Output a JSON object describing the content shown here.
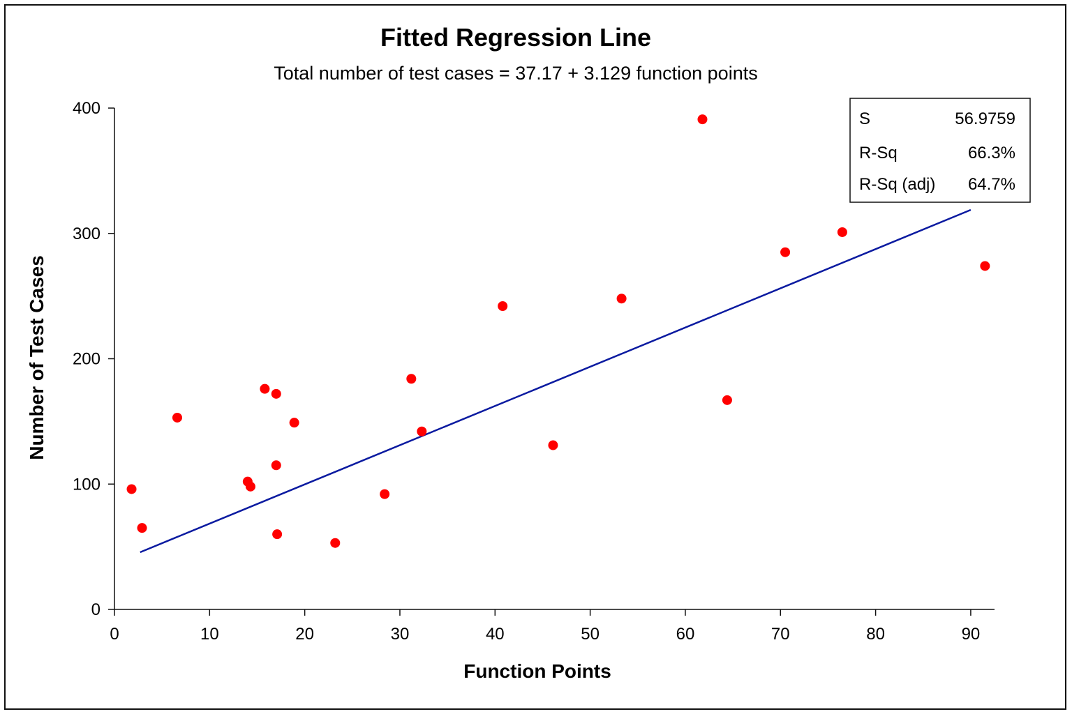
{
  "chart_data": {
    "type": "scatter",
    "title": "Fitted Regression Line",
    "subtitle": "Total number of test cases = 37.17 + 3.129 function points",
    "xlabel": "Function Points",
    "ylabel": "Number of Test Cases",
    "xlim": [
      0,
      92.5
    ],
    "ylim": [
      0,
      400
    ],
    "xticks": [
      0,
      10,
      20,
      30,
      40,
      50,
      60,
      70,
      80,
      90
    ],
    "yticks": [
      0,
      100,
      200,
      300,
      400
    ],
    "grid": false,
    "points": [
      {
        "x": 1.8,
        "y": 96
      },
      {
        "x": 2.9,
        "y": 65
      },
      {
        "x": 6.6,
        "y": 153
      },
      {
        "x": 14.0,
        "y": 102
      },
      {
        "x": 14.3,
        "y": 98
      },
      {
        "x": 15.8,
        "y": 176
      },
      {
        "x": 17.0,
        "y": 172
      },
      {
        "x": 17.0,
        "y": 115
      },
      {
        "x": 17.1,
        "y": 60
      },
      {
        "x": 18.9,
        "y": 149
      },
      {
        "x": 23.2,
        "y": 53
      },
      {
        "x": 28.4,
        "y": 92
      },
      {
        "x": 31.2,
        "y": 184
      },
      {
        "x": 32.3,
        "y": 142
      },
      {
        "x": 40.8,
        "y": 242
      },
      {
        "x": 46.1,
        "y": 131
      },
      {
        "x": 53.3,
        "y": 248
      },
      {
        "x": 61.8,
        "y": 391
      },
      {
        "x": 64.4,
        "y": 167
      },
      {
        "x": 70.5,
        "y": 285
      },
      {
        "x": 76.5,
        "y": 301
      },
      {
        "x": 91.5,
        "y": 274
      }
    ],
    "fit": {
      "intercept": 37.17,
      "slope": 3.129,
      "x_range": [
        2.7,
        90
      ]
    },
    "point_color": "#ff0000",
    "line_color": "#0a1aa0",
    "stats": {
      "legend_position": "top-right",
      "rows": [
        {
          "label": "S",
          "value": "56.9759"
        },
        {
          "label": "R-Sq",
          "value": "66.3%"
        },
        {
          "label": "R-Sq (adj)",
          "value": "64.7%"
        }
      ]
    }
  }
}
